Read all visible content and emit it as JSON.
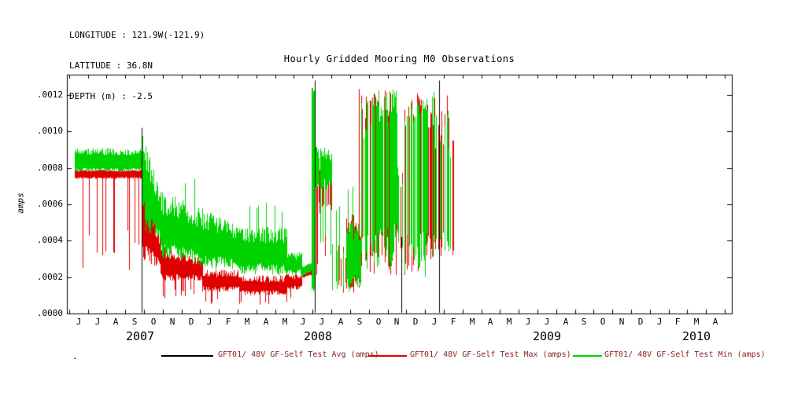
{
  "header": {
    "longitude": "LONGITUDE : 121.9W(-121.9)",
    "latitude": "LATITUDE : 36.8N",
    "depth": "DEPTH (m) : -2.5"
  },
  "footer": {
    "dot": "."
  },
  "chart_data": {
    "type": "line",
    "title": "Hourly Gridded Mooring M0 Observations",
    "xlabel": "",
    "ylabel": "amps",
    "ylim": [
      0.0,
      0.0013
    ],
    "grid": false,
    "legend_position": "bottom",
    "yticks": [
      {
        "label": ".0000",
        "value": 0.0
      },
      {
        "label": ".0002",
        "value": 0.0002
      },
      {
        "label": ".0004",
        "value": 0.0004
      },
      {
        "label": ".0006",
        "value": 0.0006
      },
      {
        "label": ".0008",
        "value": 0.0008
      },
      {
        "label": ".0010",
        "value": 0.001
      },
      {
        "label": ".0012",
        "value": 0.0012
      }
    ],
    "x_axis": {
      "start": "Jun 2007",
      "end": "Apr 2010",
      "domain": [
        -0.62,
        34.88
      ],
      "months": [
        "J",
        "J",
        "A",
        "S",
        "O",
        "N",
        "D",
        "J",
        "F",
        "M",
        "A",
        "M",
        "J",
        "J",
        "A",
        "S",
        "O",
        "N",
        "D",
        "J",
        "F",
        "M",
        "A",
        "M",
        "J",
        "J",
        "A",
        "S",
        "O",
        "N",
        "D",
        "J",
        "F",
        "M",
        "A"
      ]
    },
    "years": [
      {
        "label": "2007",
        "center": 3.3
      },
      {
        "label": "2008",
        "center": 12.8
      },
      {
        "label": "2009",
        "center": 25.0
      },
      {
        "label": "2010",
        "center": 33.0
      }
    ],
    "colors": {
      "avg": "#000000",
      "max": "#e10000",
      "min": "#00d400",
      "legend_text": "#8b2222",
      "frame": "#000000"
    },
    "series": [
      {
        "name": "GFT01/ 48V GF-Self Test Avg (amps)",
        "color_key": "avg",
        "style": "events",
        "events": [
          {
            "m": 3.37,
            "v0": 0.0,
            "v1": 0.00102
          },
          {
            "m": 12.61,
            "v0": 0.0,
            "v1": 0.00128
          },
          {
            "m": 17.24,
            "v0": 0.0,
            "v1": 0.00042
          },
          {
            "m": 19.25,
            "v0": 0.0,
            "v1": 0.00128
          }
        ]
      },
      {
        "name": "GFT01/ 48V GF-Self Test Max (amps)",
        "color_key": "max",
        "style": "noisy-envelope",
        "segments": [
          {
            "x0": -0.2,
            "x1": 3.37,
            "lo0": 0.00074,
            "hi0": 0.00079,
            "jlo": 1e-05,
            "jhi": 1e-05,
            "spike_down": {
              "val": 0.00022,
              "prob": 0.12
            }
          },
          {
            "x0": 3.37,
            "x1": 4.4,
            "lo0": 0.0003,
            "lo1": 0.00024,
            "hi0": 0.0008,
            "hi1": 0.00042
          },
          {
            "x0": 4.4,
            "x1": 6.6,
            "lo0": 0.00018,
            "hi0": 0.00038,
            "hi1": 0.0003,
            "spike_down": {
              "val": 8e-05,
              "prob": 0.08
            }
          },
          {
            "x0": 6.6,
            "x1": 8.6,
            "lo0": 0.00012,
            "hi0": 0.00024,
            "spike_down": {
              "val": 5e-05,
              "prob": 0.1
            }
          },
          {
            "x0": 8.6,
            "x1": 11.1,
            "lo0": 0.0001,
            "hi0": 0.00021,
            "spike_down": {
              "val": 4e-05,
              "prob": 0.12
            }
          },
          {
            "x0": 11.1,
            "x1": 11.9,
            "lo0": 0.00013,
            "hi0": 0.00022,
            "spike_down": {
              "val": 6e-05,
              "prob": 0.06
            }
          },
          {
            "x0": 11.9,
            "x1": 12.45,
            "lo0": 0.00019,
            "lo1": 0.00021,
            "hi0": 0.00023,
            "hi1": 0.00025,
            "jlo": 1e-05,
            "jhi": 1e-05
          },
          {
            "x0": 12.55,
            "x1": 12.8,
            "lo0": 0.0002,
            "hi0": 0.00085,
            "density": 0.6
          },
          {
            "x0": 12.8,
            "x1": 13.5,
            "lo0": 0.00055,
            "hi0": 0.00086,
            "density": 0.9,
            "spike_down": {
              "val": 0.00018,
              "prob": 0.25
            }
          },
          {
            "x0": 13.5,
            "x1": 14.3,
            "lo0": 0.0001,
            "hi0": 0.0004,
            "density": 0.3,
            "spike_up": {
              "val": 0.00118,
              "prob": 0.05
            }
          },
          {
            "x0": 14.3,
            "x1": 15.1,
            "lo0": 0.0001,
            "hi0": 0.0006,
            "density": 0.5,
            "spike_up": {
              "val": 0.00124,
              "prob": 0.08
            }
          },
          {
            "x0": 15.1,
            "x1": 17.0,
            "lo0": 0.0002,
            "hi0": 0.00124,
            "density": 0.6,
            "jhi": 0.00022
          },
          {
            "x0": 17.0,
            "x1": 17.4,
            "lo0": 0.0003,
            "hi0": 0.0008,
            "density": 0.25
          },
          {
            "x0": 17.4,
            "x1": 19.0,
            "lo0": 0.0002,
            "hi0": 0.00124,
            "density": 0.65,
            "jhi": 0.00022
          },
          {
            "x0": 19.0,
            "x1": 19.8,
            "lo0": 0.00025,
            "hi0": 0.0012,
            "density": 0.6,
            "jhi": 0.0003
          },
          {
            "x0": 19.8,
            "x1": 20.05,
            "lo0": 0.0003,
            "hi0": 0.001,
            "density": 0.4
          }
        ]
      },
      {
        "name": "GFT01/ 48V GF-Self Test Min (amps)",
        "color_key": "min",
        "style": "noisy-envelope",
        "segments": [
          {
            "x0": -0.2,
            "x1": 3.37,
            "lo0": 0.00078,
            "hi0": 0.00091,
            "jlo": 2e-05,
            "jhi": 4e-05
          },
          {
            "x0": 3.37,
            "x1": 3.6,
            "lo0": 0.00055,
            "lo1": 0.00048,
            "hi0": 0.00102,
            "hi1": 0.00094
          },
          {
            "x0": 3.6,
            "x1": 4.4,
            "lo0": 0.00045,
            "lo1": 0.00038,
            "hi0": 0.00094,
            "hi1": 0.00068
          },
          {
            "x0": 4.4,
            "x1": 6.6,
            "lo0": 0.0003,
            "lo1": 0.00026,
            "hi0": 0.00068,
            "hi1": 0.00058,
            "spike_up": {
              "val": 0.00075,
              "prob": 0.05
            }
          },
          {
            "x0": 6.6,
            "x1": 8.6,
            "lo0": 0.00024,
            "hi0": 0.00058,
            "hi1": 0.00048
          },
          {
            "x0": 8.6,
            "x1": 11.1,
            "lo0": 0.00021,
            "hi0": 0.00048,
            "spike_up": {
              "val": 0.00062,
              "prob": 0.07
            }
          },
          {
            "x0": 11.1,
            "x1": 11.9,
            "lo0": 0.00021,
            "hi0": 0.00034
          },
          {
            "x0": 11.9,
            "x1": 12.42,
            "lo0": 0.0002,
            "lo1": 0.00023,
            "hi0": 0.00026,
            "hi1": 0.00028,
            "jlo": 1e-05,
            "jhi": 1e-05
          },
          {
            "x0": 12.45,
            "x1": 12.58,
            "lo0": 0.00012,
            "hi0": 0.00124,
            "jlo": 2e-05,
            "jhi": 2e-05
          },
          {
            "x0": 12.66,
            "x1": 13.5,
            "lo0": 0.00068,
            "hi0": 0.00092,
            "density": 0.9,
            "spike_down": {
              "val": 0.0003,
              "prob": 0.12
            }
          },
          {
            "x0": 13.5,
            "x1": 14.3,
            "lo0": 0.00012,
            "hi0": 0.00042,
            "density": 0.35,
            "spike_up": {
              "val": 0.00062,
              "prob": 0.1
            }
          },
          {
            "x0": 14.3,
            "x1": 15.1,
            "lo0": 0.00012,
            "hi0": 0.00052,
            "density": 0.9,
            "spike_up": {
              "val": 0.00072,
              "prob": 0.1
            }
          },
          {
            "x0": 15.1,
            "x1": 15.7,
            "lo0": 0.0002,
            "hi0": 0.00124,
            "density": 0.5,
            "jhi": 0.0003
          },
          {
            "x0": 15.7,
            "x1": 17.0,
            "lo0": 0.00025,
            "hi0": 0.00124,
            "density": 0.75,
            "jhi": 0.0002
          },
          {
            "x0": 17.0,
            "x1": 17.4,
            "lo0": 0.0003,
            "hi0": 0.0009,
            "density": 0.2
          },
          {
            "x0": 17.4,
            "x1": 19.0,
            "lo0": 0.0002,
            "hi0": 0.00124,
            "density": 0.7,
            "jhi": 0.0002
          },
          {
            "x0": 19.0,
            "x1": 19.7,
            "lo0": 0.0003,
            "hi0": 0.00116,
            "density": 0.6,
            "jhi": 0.0003
          },
          {
            "x0": 19.7,
            "x1": 20.0,
            "lo0": 0.0003,
            "hi0": 0.001,
            "density": 0.5
          }
        ]
      }
    ]
  }
}
